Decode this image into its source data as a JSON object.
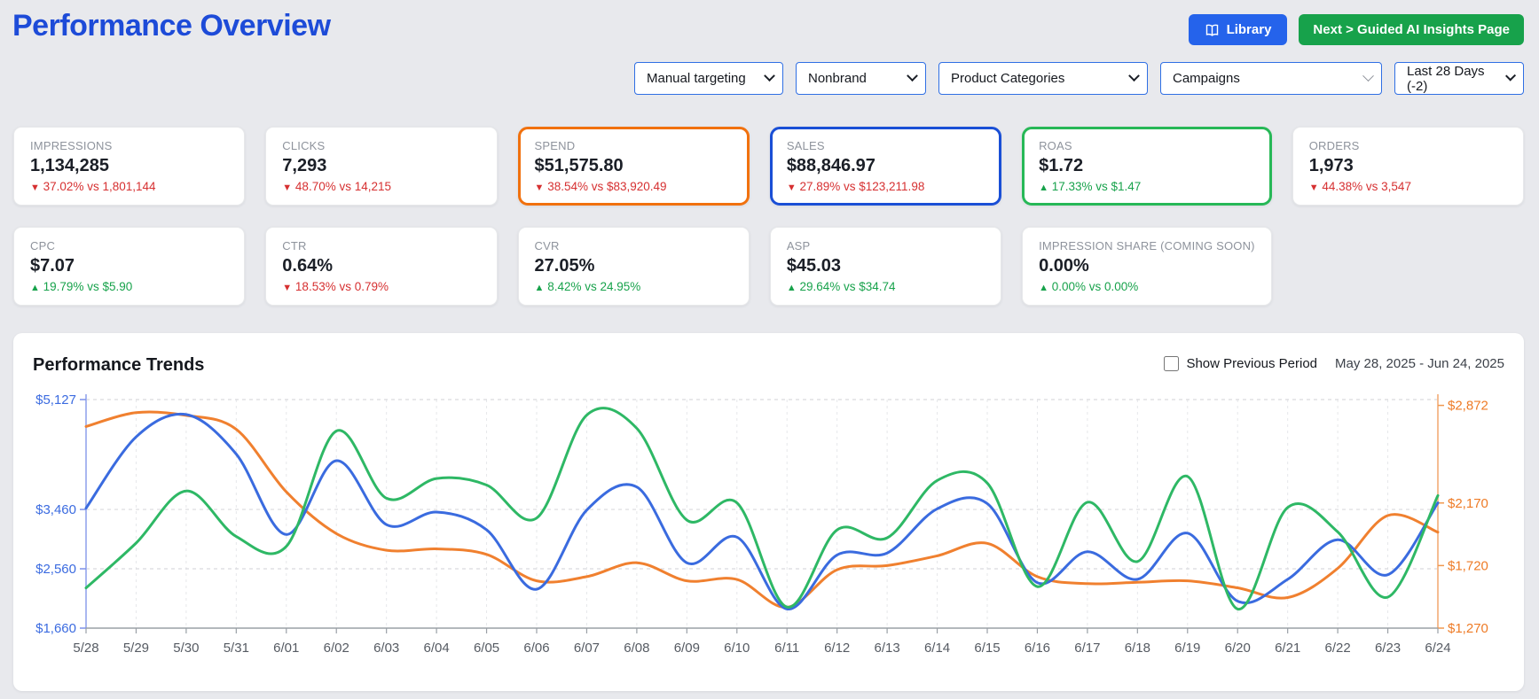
{
  "page": {
    "title": "Performance Overview"
  },
  "header": {
    "library_label": "Library",
    "next_label": "Next > Guided AI Insights Page",
    "library_color": "#2563eb",
    "next_color": "#17a24b"
  },
  "filters": [
    {
      "value": "Manual targeting"
    },
    {
      "value": "Nonbrand"
    },
    {
      "value": "Product Categories"
    },
    {
      "value": "Campaigns"
    },
    {
      "value": "Last 28 Days (-2)"
    }
  ],
  "kpis": [
    {
      "label": "IMPRESSIONS",
      "value": "1,134,285",
      "arrow": "▼",
      "delta": "37.02% vs 1,801,144",
      "trend": "down",
      "highlight": ""
    },
    {
      "label": "CLICKS",
      "value": "7,293",
      "arrow": "▼",
      "delta": "48.70% vs 14,215",
      "trend": "down",
      "highlight": ""
    },
    {
      "label": "SPEND",
      "value": "$51,575.80",
      "arrow": "▼",
      "delta": "38.54% vs $83,920.49",
      "trend": "down",
      "highlight": "#f1710e"
    },
    {
      "label": "SALES",
      "value": "$88,846.97",
      "arrow": "▼",
      "delta": "27.89% vs $123,211.98",
      "trend": "down",
      "highlight": "#1a4fd6"
    },
    {
      "label": "ROAS",
      "value": "$1.72",
      "arrow": "▲",
      "delta": "17.33% vs $1.47",
      "trend": "up",
      "highlight": "#27b857"
    },
    {
      "label": "ORDERS",
      "value": "1,973",
      "arrow": "▼",
      "delta": "44.38% vs 3,547",
      "trend": "down",
      "highlight": ""
    },
    {
      "label": "CPC",
      "value": "$7.07",
      "arrow": "▲",
      "delta": "19.79% vs $5.90",
      "trend": "up",
      "highlight": ""
    },
    {
      "label": "CTR",
      "value": "0.64%",
      "arrow": "▼",
      "delta": "18.53% vs 0.79%",
      "trend": "down",
      "highlight": ""
    },
    {
      "label": "CVR",
      "value": "27.05%",
      "arrow": "▲",
      "delta": "8.42% vs 24.95%",
      "trend": "up",
      "highlight": ""
    },
    {
      "label": "ASP",
      "value": "$45.03",
      "arrow": "▲",
      "delta": "29.64% vs $34.74",
      "trend": "up",
      "highlight": ""
    },
    {
      "label": "IMPRESSION SHARE (COMING SOON)",
      "value": "0.00%",
      "arrow": "▲",
      "delta": "0.00% vs 0.00%",
      "trend": "up",
      "highlight": ""
    }
  ],
  "trends": {
    "title": "Performance Trends",
    "checkbox_label": "Show Previous Period",
    "date_range": "May 28, 2025 - Jun 24, 2025"
  },
  "chart_data": {
    "type": "line",
    "title": "Performance Trends",
    "legend": "none",
    "grid": "dashed horizontal and vertical",
    "x": [
      "5/28",
      "5/29",
      "5/30",
      "5/31",
      "6/01",
      "6/02",
      "6/03",
      "6/04",
      "6/05",
      "6/06",
      "6/07",
      "6/08",
      "6/09",
      "6/10",
      "6/11",
      "6/12",
      "6/13",
      "6/14",
      "6/15",
      "6/16",
      "6/17",
      "6/18",
      "6/19",
      "6/20",
      "6/21",
      "6/22",
      "6/23",
      "6/24"
    ],
    "left_axis": {
      "color": "#3b6be0",
      "line_color": "#a9b7f0",
      "min": 1660,
      "max": 5127,
      "ticks": [
        5127,
        3460,
        2560,
        1660
      ],
      "tick_labels": [
        "$5,127",
        "$3,460",
        "$2,560",
        "$1,660"
      ]
    },
    "right_axis": {
      "color": "#ee7b26",
      "line_color": "#f5bd92",
      "min": 1270,
      "max": 2914,
      "ticks": [
        2872,
        2170,
        1720,
        1270
      ],
      "tick_labels": [
        "$2,872",
        "$2,170",
        "$1,720",
        "$1,270"
      ]
    },
    "series": [
      {
        "name": "orange-series",
        "axis": "right",
        "color": "#f0802f",
        "values": [
          2720,
          2820,
          2800,
          2700,
          2250,
          1950,
          1830,
          1840,
          1800,
          1610,
          1640,
          1740,
          1610,
          1620,
          1420,
          1690,
          1720,
          1790,
          1880,
          1640,
          1590,
          1600,
          1610,
          1560,
          1490,
          1700,
          2080,
          1960
        ]
      },
      {
        "name": "blue-series",
        "axis": "left",
        "color": "#3a6bdf",
        "values": [
          3480,
          4560,
          4900,
          4300,
          3080,
          4200,
          3230,
          3420,
          3150,
          2250,
          3450,
          3800,
          2650,
          3040,
          1950,
          2770,
          2800,
          3470,
          3550,
          2350,
          2820,
          2400,
          3100,
          2070,
          2400,
          3000,
          2470,
          3560
        ]
      },
      {
        "name": "green-series",
        "axis": "left",
        "color": "#2eb865",
        "values": [
          2270,
          2950,
          3740,
          3050,
          2900,
          4650,
          3630,
          3930,
          3830,
          3330,
          4890,
          4690,
          3300,
          3560,
          1980,
          3150,
          3030,
          3900,
          3860,
          2290,
          3570,
          2670,
          3960,
          1950,
          3490,
          3120,
          2130,
          3670
        ]
      }
    ]
  }
}
